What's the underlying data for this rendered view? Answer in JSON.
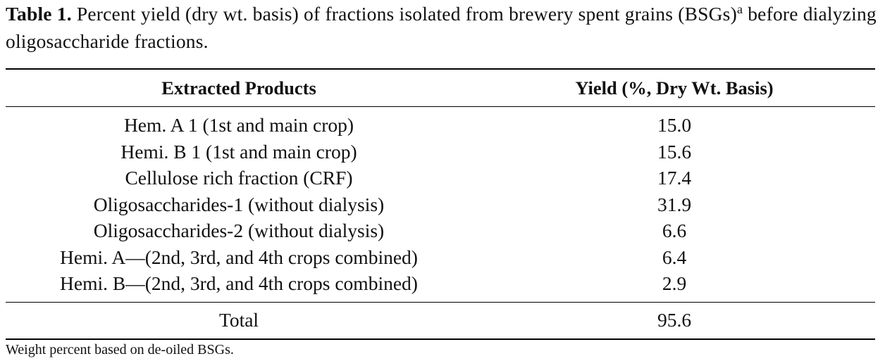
{
  "caption": {
    "label": "Table 1.",
    "text": "Percent yield (dry wt. basis) of fractions isolated from brewery spent grains (BSGs)",
    "superscript": "a",
    "text_end": " before dialyzing oligosaccharide fractions."
  },
  "table": {
    "header": [
      "Extracted Products",
      "Yield (%, Dry Wt. Basis)"
    ],
    "rows": [
      [
        "Hem. A 1 (1st and main crop)",
        "15.0"
      ],
      [
        "Hemi. B 1 (1st and main crop)",
        "15.6"
      ],
      [
        "Cellulose rich fraction (CRF)",
        "17.4"
      ],
      [
        "Oligosaccharides-1 (without dialysis)",
        "31.9"
      ],
      [
        "Oligosaccharides-2 (without dialysis)",
        "6.6"
      ],
      [
        "Hemi. A—(2nd, 3rd, and 4th crops combined)",
        "6.4"
      ],
      [
        "Hemi. B—(2nd, 3rd, and 4th crops combined)",
        "2.9"
      ]
    ],
    "total": [
      "Total",
      "95.6"
    ]
  },
  "footnote": "Weight percent based on de-oiled BSGs."
}
